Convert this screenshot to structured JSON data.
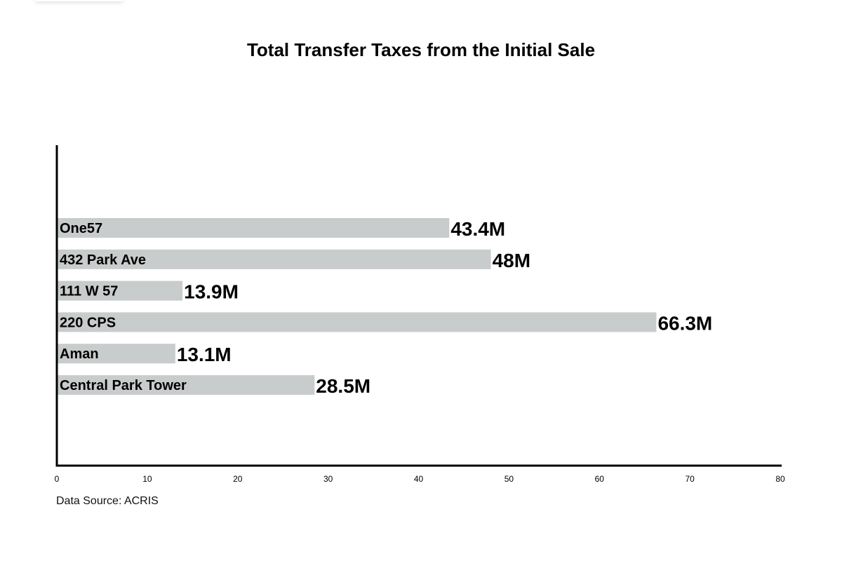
{
  "chart_data": {
    "type": "bar",
    "orientation": "horizontal",
    "title": "Total Transfer Taxes from the Initial Sale",
    "categories": [
      "One57",
      "432 Park Ave",
      "111 W 57",
      "220 CPS",
      "Aman",
      "Central Park Tower"
    ],
    "values": [
      43.4,
      48,
      13.9,
      66.3,
      13.1,
      28.5
    ],
    "data_labels": [
      "43.4M",
      "48M",
      "13.9M",
      "66.3M",
      "13.1M",
      "28.5M"
    ],
    "xlim": [
      0,
      80
    ],
    "xticks": [
      "0",
      "10",
      "20",
      "30",
      "40",
      "50",
      "60",
      "70",
      "80"
    ],
    "xlabel": "",
    "ylabel": "",
    "grid": false,
    "bar_color": "#c9cccc",
    "source": "Data Source: ACRIS"
  }
}
